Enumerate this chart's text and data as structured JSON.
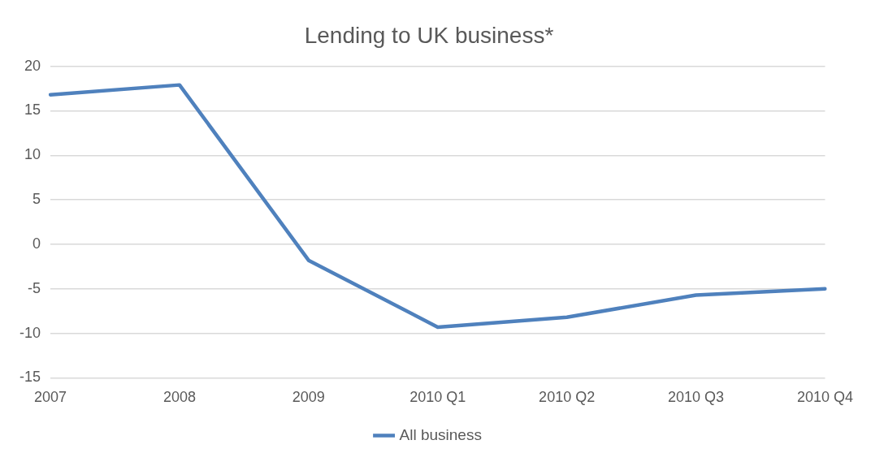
{
  "chart_data": {
    "type": "line",
    "title": "Lending to UK business*",
    "categories": [
      "2007",
      "2008",
      "2009",
      "2010 Q1",
      "2010 Q2",
      "2010 Q3",
      "2010 Q4"
    ],
    "series": [
      {
        "name": "All business",
        "color": "#4f81bd",
        "values": [
          16.8,
          17.9,
          -1.8,
          -9.3,
          -8.2,
          -5.7,
          -5.0
        ]
      }
    ],
    "ylim": [
      -15,
      20
    ],
    "yticks": [
      -15,
      -10,
      -5,
      0,
      5,
      10,
      15,
      20
    ],
    "grid": "y",
    "legend": "bottom",
    "marker": "none",
    "line_style": "solid"
  }
}
